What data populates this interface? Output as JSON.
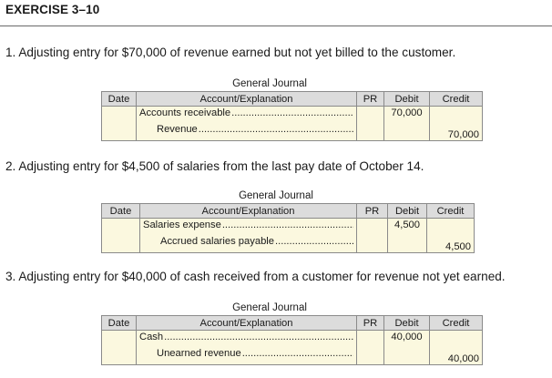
{
  "exercise_title": "EXERCISE 3–10",
  "journal_headers": {
    "title": "General Journal",
    "date": "Date",
    "account": "Account/Explanation",
    "pr": "PR",
    "debit": "Debit",
    "credit": "Credit"
  },
  "dots": "........................................................................",
  "entries": [
    {
      "question": "1. Adjusting entry for $70,000 of revenue earned but not yet billed to the customer.",
      "debit_account": "Accounts receivable",
      "debit_amount": "70,000",
      "credit_account": "Revenue",
      "credit_amount": "70,000"
    },
    {
      "question": "2. Adjusting entry for $4,500 of salaries from the last pay date of October 14.",
      "debit_account": "Salaries expense",
      "debit_amount": "4,500",
      "credit_account": "Accrued salaries payable",
      "credit_amount": "4,500"
    },
    {
      "question": "3. Adjusting entry for $40,000 of cash received from a customer for revenue not yet earned.",
      "debit_account": "Cash",
      "debit_amount": "40,000",
      "credit_account": "Unearned revenue",
      "credit_amount": "40,000"
    }
  ]
}
